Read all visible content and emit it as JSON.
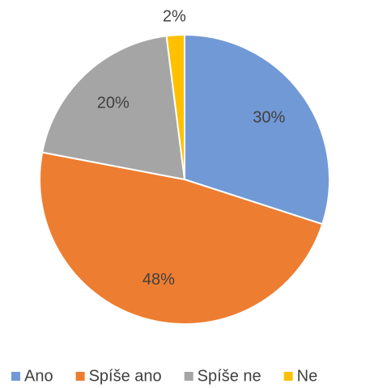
{
  "chart_data": {
    "type": "pie",
    "categories": [
      "Ano",
      "Spíše ano",
      "Spíše ne",
      "Ne"
    ],
    "values": [
      30,
      48,
      20,
      2
    ],
    "value_labels": [
      "30%",
      "48%",
      "20%",
      "2%"
    ],
    "colors": [
      "#7199d6",
      "#ed7d31",
      "#a5a5a5",
      "#ffc000"
    ],
    "legend": "bottom"
  }
}
